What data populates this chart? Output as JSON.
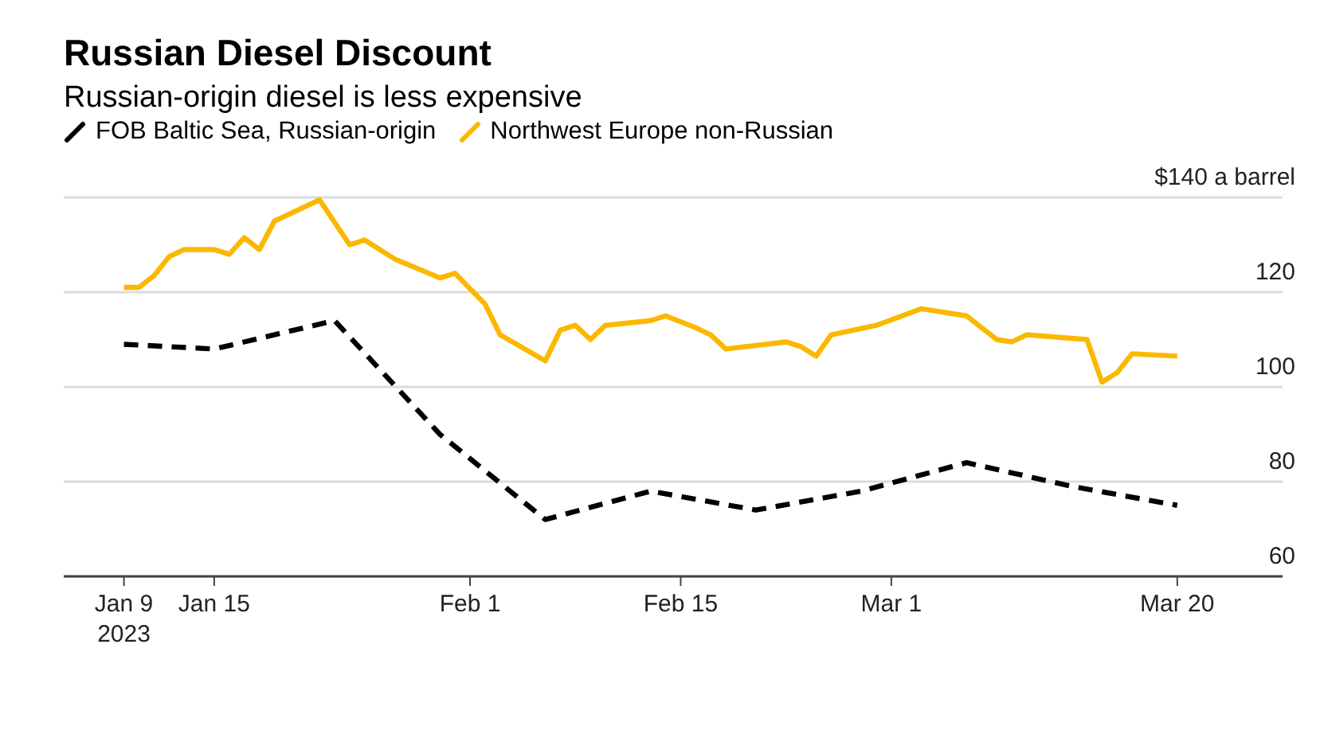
{
  "chart_data": {
    "type": "line",
    "title": "Russian Diesel Discount",
    "subtitle": "Russian-origin diesel is less expensive",
    "legend": "top left",
    "grid": "y",
    "xlim": [
      "2023-01-05",
      "2023-03-27"
    ],
    "xticks": [
      {
        "value": "2023-01-09",
        "label": "Jan 9\n2023"
      },
      {
        "value": "2023-01-15",
        "label": "Jan 15"
      },
      {
        "value": "2023-02-01",
        "label": "Feb 1"
      },
      {
        "value": "2023-02-15",
        "label": "Feb 15"
      },
      {
        "value": "2023-03-01",
        "label": "Mar 1"
      },
      {
        "value": "2023-03-20",
        "label": "Mar 20"
      }
    ],
    "ylim": [
      60,
      140
    ],
    "yticks": [
      60,
      80,
      100,
      120,
      {
        "value": 140,
        "label": "$140 a barrel"
      }
    ],
    "series": [
      {
        "name": "FOB Baltic Sea, Russian-origin",
        "color": "#000000",
        "line_style": "dashed",
        "x": [
          "2023-01-09",
          "2023-01-15",
          "2023-01-23",
          "2023-01-30",
          "2023-02-06",
          "2023-02-13",
          "2023-02-20",
          "2023-02-27",
          "2023-03-06",
          "2023-03-13",
          "2023-03-20"
        ],
        "values": [
          109,
          108,
          114,
          90,
          72,
          78,
          74,
          78,
          84,
          79,
          75
        ]
      },
      {
        "name": "Northwest Europe non-Russian",
        "color": "#fbb800",
        "line_style": "solid",
        "x": [
          "2023-01-09",
          "2023-01-10",
          "2023-01-11",
          "2023-01-12",
          "2023-01-13",
          "2023-01-15",
          "2023-01-16",
          "2023-01-17",
          "2023-01-18",
          "2023-01-19",
          "2023-01-22",
          "2023-01-24",
          "2023-01-25",
          "2023-01-27",
          "2023-01-30",
          "2023-01-31",
          "2023-02-02",
          "2023-02-03",
          "2023-02-06",
          "2023-02-07",
          "2023-02-08",
          "2023-02-09",
          "2023-02-10",
          "2023-02-13",
          "2023-02-14",
          "2023-02-16",
          "2023-02-17",
          "2023-02-18",
          "2023-02-22",
          "2023-02-23",
          "2023-02-24",
          "2023-02-25",
          "2023-02-28",
          "2023-03-03",
          "2023-03-06",
          "2023-03-08",
          "2023-03-09",
          "2023-03-10",
          "2023-03-14",
          "2023-03-15",
          "2023-03-16",
          "2023-03-17",
          "2023-03-20"
        ],
        "values": [
          121,
          121,
          123.5,
          127.5,
          129,
          129,
          128,
          131.5,
          129,
          135,
          139.5,
          130,
          131,
          127,
          123,
          124,
          117.5,
          111,
          105.5,
          112,
          113,
          110,
          113,
          114,
          115,
          112.5,
          111,
          108,
          109.5,
          108.5,
          106.5,
          111,
          113,
          116.5,
          115,
          110,
          109.5,
          111,
          110,
          101,
          103,
          107,
          106.5
        ]
      }
    ]
  }
}
